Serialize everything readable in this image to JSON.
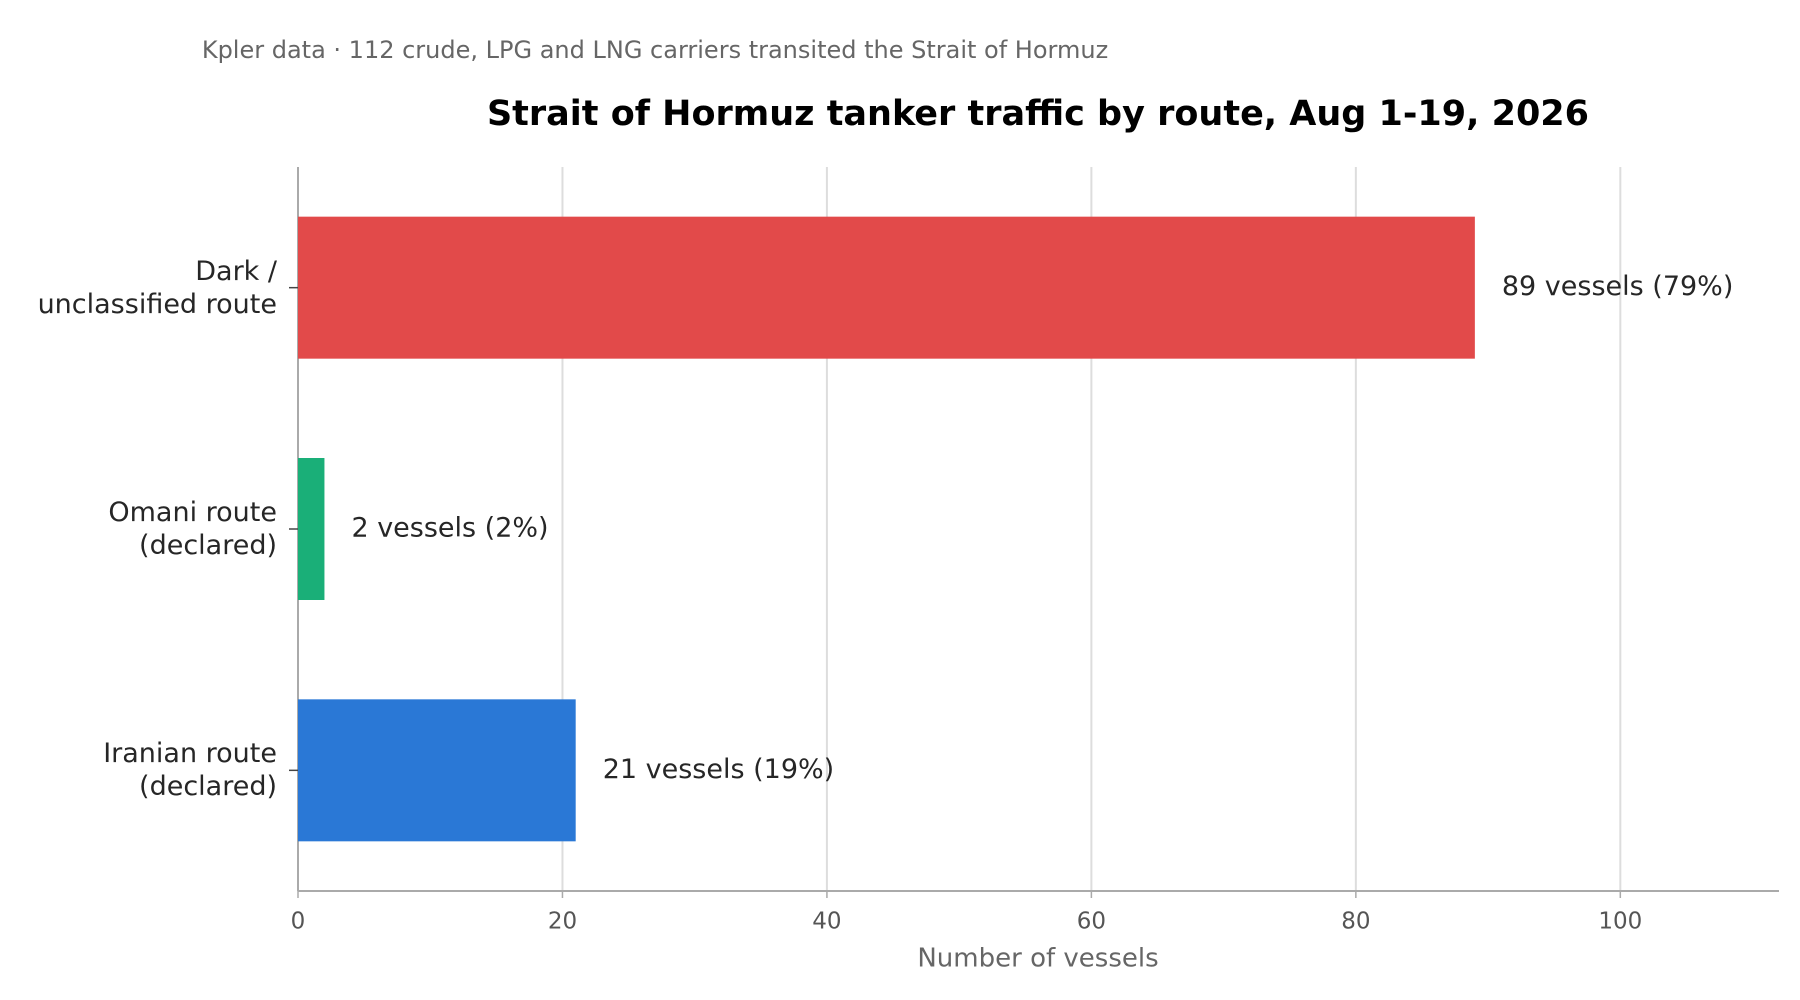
{
  "chart_data": {
    "type": "bar",
    "orientation": "horizontal",
    "subtitle": "Kpler data · 112 crude, LPG and LNG carriers transited the Strait of Hormuz",
    "title": "Strait of Hormuz tanker traffic by route, Aug 1-19, 2026",
    "x_label": "Number of vessels",
    "categories": [
      "Dark /\nunclassified route",
      "Omani route\n(declared)",
      "Iranian route\n(declared)"
    ],
    "values": [
      89,
      2,
      21
    ],
    "value_labels": [
      "89 vessels (79%)",
      "2 vessels (2%)",
      "21 vessels (19%)"
    ],
    "colors": [
      "#e24a4a",
      "#1aaf78",
      "#2a78d6"
    ],
    "xlim": [
      0,
      112
    ],
    "xticks": [
      0,
      20,
      40,
      60,
      80,
      100
    ],
    "grid": true
  }
}
